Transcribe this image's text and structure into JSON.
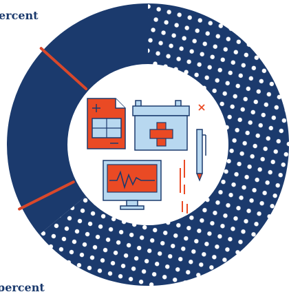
{
  "chart_data": {
    "type": "pie",
    "slices": [
      {
        "value": 64,
        "label": "ercent",
        "color": "#1b3a6d",
        "pattern": "dots"
      },
      {
        "value": 36,
        "label": "percent",
        "color": "#1b3a6d",
        "pattern": "solid"
      }
    ],
    "divider_color": "#d9482b"
  },
  "illustration": {
    "icons": [
      "document-icon",
      "medical-kit-icon",
      "pen-icon",
      "monitor-heartbeat-icon"
    ],
    "colors": {
      "orange": "#ea4a24",
      "light_blue": "#b8d8f0",
      "navy": "#1b3a6d"
    }
  }
}
